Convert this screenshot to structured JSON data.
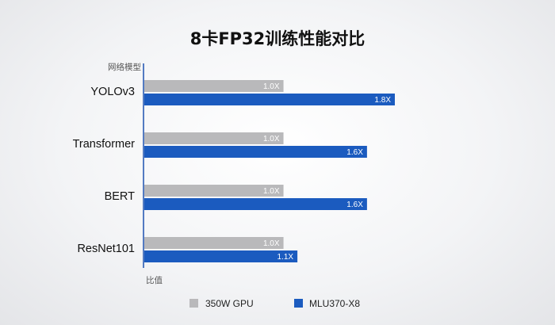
{
  "chart_data": {
    "type": "bar",
    "orientation": "horizontal",
    "title": "8卡FP32训练性能对比",
    "ylabel": "网络模型",
    "xlabel": "比值",
    "categories": [
      "YOLOv3",
      "Transformer",
      "BERT",
      "ResNet101"
    ],
    "series": [
      {
        "name": "350W GPU",
        "color": "#b9b9bb",
        "values": [
          1.0,
          1.0,
          1.0,
          1.0
        ],
        "labels": [
          "1.0X",
          "1.0X",
          "1.0X",
          "1.0X"
        ]
      },
      {
        "name": "MLU370-X8",
        "color": "#1b5bbf",
        "values": [
          1.8,
          1.6,
          1.6,
          1.1
        ],
        "labels": [
          "1.8X",
          "1.6X",
          "1.6X",
          "1.1X"
        ]
      }
    ],
    "xlim": [
      0,
      1.8
    ],
    "grid": false,
    "legend_position": "bottom-center",
    "axis_color": "#2a5cb4"
  }
}
